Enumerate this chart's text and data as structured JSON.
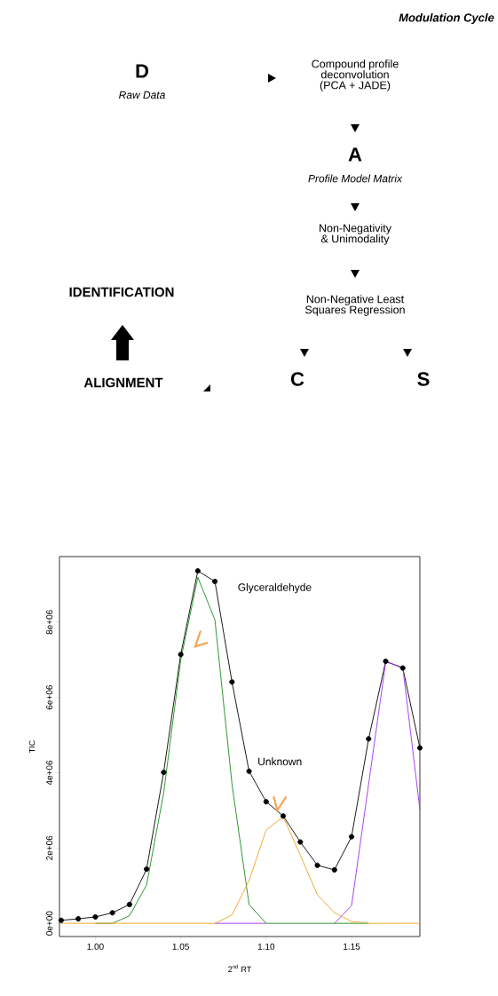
{
  "chart_data": [
    {
      "type": "other",
      "annotations": [
        "Modulation Cycle",
        "D",
        "Raw Data",
        "Compound profile deconvolution (PCA + JADE)",
        "A",
        "Profile Model Matrix",
        "Non-Negativity & Unimodality",
        "Non-Negative Least Squares Regression",
        "IDENTIFICATION",
        "ALIGNMENT",
        "C",
        "S"
      ]
    },
    {
      "type": "line",
      "xlabel": "2$^{nd}$ RT",
      "ylabel": "TIC",
      "x": [
        0.98,
        0.99,
        1.0,
        1.01,
        1.02,
        1.03,
        1.04,
        1.05,
        1.06,
        1.07,
        1.08,
        1.09,
        1.1,
        1.11,
        1.12,
        1.13,
        1.14,
        1.15,
        1.16,
        1.17,
        1.18,
        1.19
      ],
      "series": [
        {
          "color": "#000000",
          "marker": "circle",
          "values": [
            80000,
            120000,
            170000,
            280000,
            500000,
            1440000,
            4010000,
            7140000,
            9360000,
            9080000,
            6410000,
            4040000,
            3230000,
            2850000,
            2160000,
            1540000,
            1420000,
            2300000,
            4900000,
            6960000,
            6780000,
            4660000
          ]
        },
        {
          "color": "#a030f0",
          "marker": "none",
          "values": [
            null,
            null,
            null,
            null,
            null,
            null,
            null,
            null,
            null,
            0,
            0,
            0,
            0,
            null,
            null,
            null,
            0,
            470000,
            3700000,
            6940000,
            6800000,
            3020000
          ]
        },
        {
          "color": "#1a8c1a",
          "marker": "none",
          "values": [
            null,
            null,
            0,
            0,
            200000,
            1020000,
            3460000,
            7000000,
            9190000,
            8060000,
            3700000,
            500000,
            0,
            0,
            0,
            0,
            0,
            0,
            0,
            null,
            null,
            null
          ]
        },
        {
          "color": "#f0a020",
          "marker": "none",
          "values": [
            0,
            0,
            0,
            0,
            0,
            0,
            0,
            0,
            0,
            0,
            220000,
            1140000,
            2480000,
            2830000,
            1810000,
            760000,
            280000,
            50000,
            0,
            0,
            0,
            0
          ]
        }
      ],
      "xlim": [
        0.979,
        1.19
      ],
      "ylim": [
        -350000,
        9740000
      ],
      "xticks": [
        {
          "value": 1.0,
          "label": "1.00"
        },
        1.05,
        {
          "value": 1.1,
          "label": "1.10"
        },
        1.15
      ],
      "yticks": [
        {
          "value": 0,
          "label": "0e+00"
        },
        {
          "value": 2000000,
          "label": "2e+06"
        },
        {
          "value": 4000000,
          "label": "4e+06"
        },
        {
          "value": 6000000,
          "label": "6e+06"
        },
        {
          "value": 8000000,
          "label": "8e+06"
        }
      ],
      "annotations": [
        "Glyceraldehyde",
        "Unknown"
      ]
    }
  ]
}
